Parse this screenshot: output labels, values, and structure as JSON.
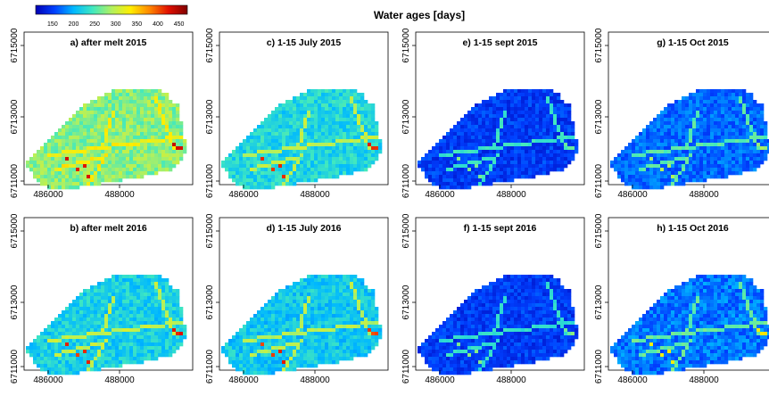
{
  "figure": {
    "title": "Water ages [days]",
    "colorbar": {
      "ticks": [
        150,
        200,
        250,
        300,
        350,
        400,
        450
      ],
      "range": [
        110,
        470
      ],
      "colors": [
        "#0000b4",
        "#0040ff",
        "#00b8ff",
        "#40e8c0",
        "#b0f060",
        "#ffee00",
        "#ff8800",
        "#e01000",
        "#800000"
      ]
    }
  },
  "chart_data": [
    {
      "type": "heatmap",
      "title": "a) after melt 2015",
      "xticks": [
        486000,
        488000
      ],
      "yticks": [
        6711000,
        6713000,
        6715000
      ],
      "ages": {
        "base": 275,
        "stream": 330,
        "hot": 420,
        "spread": 28
      }
    },
    {
      "type": "heatmap",
      "title": "c) 1-15 July 2015",
      "xticks": [
        486000,
        488000
      ],
      "yticks": [
        6711000,
        6713000,
        6715000
      ],
      "ages": {
        "base": 225,
        "stream": 300,
        "hot": 410,
        "spread": 25
      }
    },
    {
      "type": "heatmap",
      "title": "e) 1-15 sept 2015",
      "xticks": [
        486000,
        488000
      ],
      "yticks": [
        6711000,
        6713000,
        6715000
      ],
      "ages": {
        "base": 150,
        "stream": 240,
        "hot": 265,
        "spread": 18
      }
    },
    {
      "type": "heatmap",
      "title": "g) 1-15 Oct 2015",
      "xticks": [
        486000,
        488000
      ],
      "yticks": [
        6711000,
        6713000,
        6715000
      ],
      "ages": {
        "base": 170,
        "stream": 255,
        "hot": 285,
        "spread": 20
      }
    },
    {
      "type": "heatmap",
      "title": "b) after melt 2016",
      "xticks": [
        486000,
        488000
      ],
      "yticks": [
        6711000,
        6713000,
        6715000
      ],
      "ages": {
        "base": 220,
        "stream": 300,
        "hot": 410,
        "spread": 24
      }
    },
    {
      "type": "heatmap",
      "title": "d) 1-15 July 2016",
      "xticks": [
        486000,
        488000
      ],
      "yticks": [
        6711000,
        6713000,
        6715000
      ],
      "ages": {
        "base": 215,
        "stream": 295,
        "hot": 405,
        "spread": 24
      }
    },
    {
      "type": "heatmap",
      "title": "f) 1-15 sept 2016",
      "xticks": [
        486000,
        488000
      ],
      "yticks": [
        6711000,
        6713000,
        6715000
      ],
      "ages": {
        "base": 150,
        "stream": 235,
        "hot": 265,
        "spread": 18
      }
    },
    {
      "type": "heatmap",
      "title": "h) 1-15 Oct 2016",
      "xticks": [
        486000,
        488000
      ],
      "yticks": [
        6711000,
        6713000,
        6715000
      ],
      "ages": {
        "base": 175,
        "stream": 260,
        "hot": 330,
        "spread": 22
      }
    }
  ]
}
